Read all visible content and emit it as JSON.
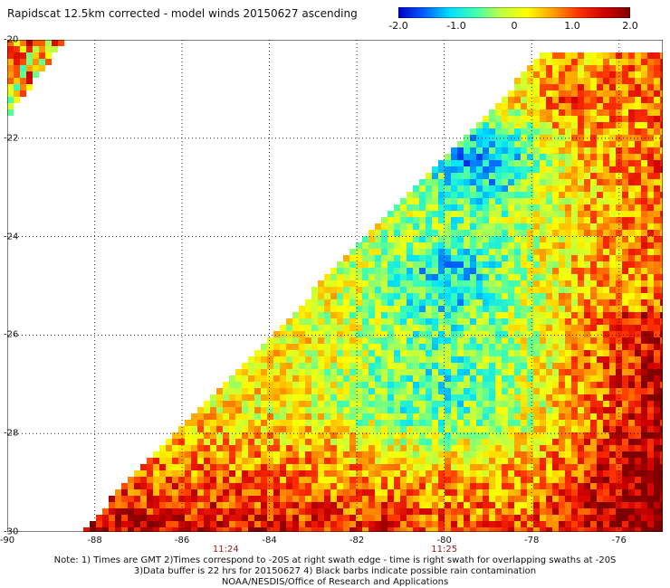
{
  "title": "Rapidscat 12.5km corrected - model winds 20150627 ascending",
  "colorbar": {
    "ticks": [
      "-2.0",
      "-1.0",
      "0",
      "1.0",
      "2.0"
    ],
    "stops": [
      "#0000c8",
      "#0060ff",
      "#00e0ff",
      "#40ffb0",
      "#c0ff40",
      "#ffff00",
      "#ffa000",
      "#ff3000",
      "#d00000",
      "#800000"
    ]
  },
  "map": {
    "lon_range": [
      -90,
      -75
    ],
    "lat_range": [
      -30,
      -20
    ],
    "lon_ticks": [
      "-90",
      "-88",
      "-86",
      "-84",
      "-82",
      "-80",
      "-78",
      "-76"
    ],
    "lat_ticks": [
      "-20",
      "-22",
      "-24",
      "-26",
      "-28",
      "-30"
    ],
    "time_labels": [
      {
        "lon": -85,
        "text": "11:24"
      },
      {
        "lon": -80,
        "text": "11:25"
      }
    ]
  },
  "notes": [
    "Note: 1) Times are GMT 2)Times correspond to -20S at right swath edge - time is right swath for overlapping swaths at -20S",
    "3)Data buffer is 22 hrs for 20150627 4) Black barbs indicate possible rain contamination",
    "NOAA/NESDIS/Office of Research and Applications"
  ]
}
